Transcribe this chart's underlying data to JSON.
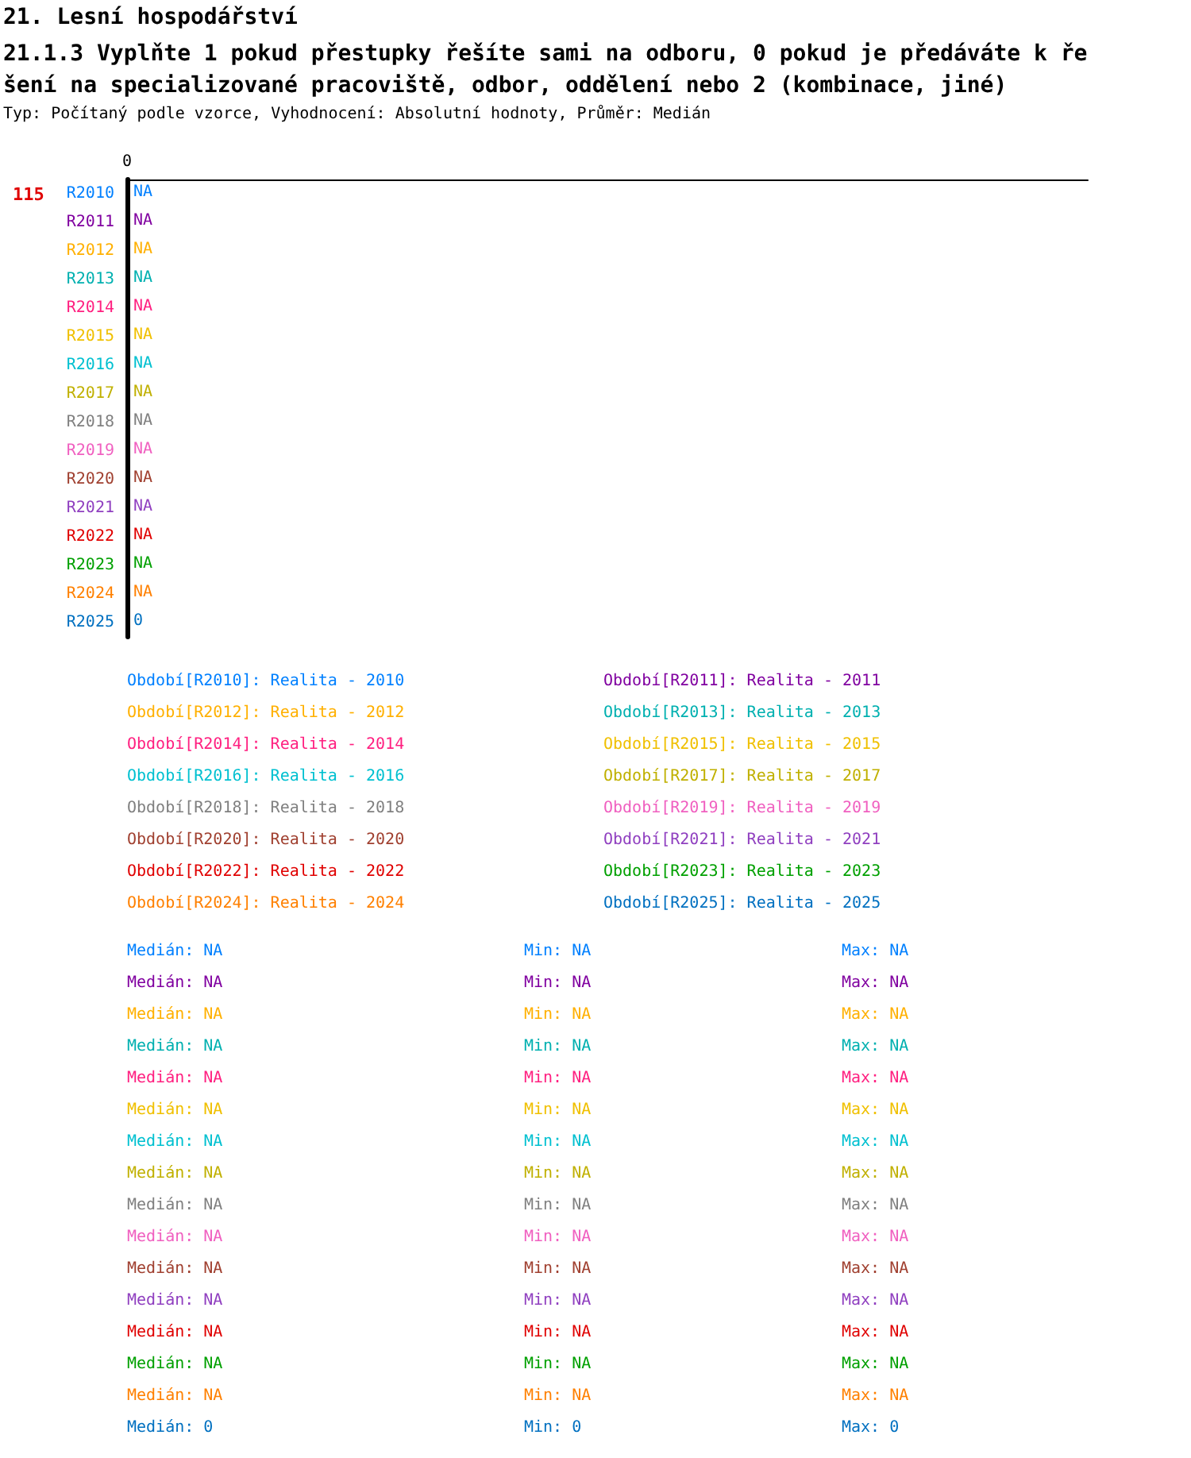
{
  "chart_data": {
    "type": "other",
    "title": "21. Lesní hospodářství",
    "subtitle": "21.1.3 Vyplňte 1 pokud přestupky řešíte sami na odboru, 0 pokud je předáváte k řešení na specializované pracoviště, odbor, oddělení nebo 2 (kombinace, jiné)",
    "categories": [
      "R2010",
      "R2011",
      "R2012",
      "R2013",
      "R2014",
      "R2015",
      "R2016",
      "R2017",
      "R2018",
      "R2019",
      "R2020",
      "R2021",
      "R2022",
      "R2023",
      "R2024",
      "R2025"
    ],
    "colors": [
      "#0080ff",
      "#8000a0",
      "#ffb000",
      "#00b0b0",
      "#ff2080",
      "#f0c000",
      "#00c0d0",
      "#c0b000",
      "#808080",
      "#f060c0",
      "#a04030",
      "#9040c0",
      "#e00000",
      "#00a000",
      "#ff8000",
      "#0070c0"
    ],
    "values": [
      null,
      null,
      null,
      null,
      null,
      null,
      null,
      null,
      null,
      null,
      null,
      null,
      null,
      null,
      null,
      0
    ],
    "value_labels": [
      "NA",
      "NA",
      "NA",
      "NA",
      "NA",
      "NA",
      "NA",
      "NA",
      "NA",
      "NA",
      "NA",
      "NA",
      "NA",
      "NA",
      "NA",
      "0"
    ],
    "annotations": [
      "Typ: Počítaný podle vzorce, Vyhodnocení: Absolutní hodnoty, Průměr: Medián",
      "115",
      "0",
      "Období[R2010]: Realita - 2010",
      "Období[R2011]: Realita - 2011",
      "Období[R2012]: Realita - 2012",
      "Období[R2013]: Realita - 2013",
      "Období[R2014]: Realita - 2014",
      "Období[R2015]: Realita - 2015",
      "Období[R2016]: Realita - 2016",
      "Období[R2017]: Realita - 2017",
      "Období[R2018]: Realita - 2018",
      "Období[R2019]: Realita - 2019",
      "Období[R2020]: Realita - 2020",
      "Období[R2021]: Realita - 2021",
      "Období[R2022]: Realita - 2022",
      "Období[R2023]: Realita - 2023",
      "Období[R2024]: Realita - 2024",
      "Období[R2025]: Realita - 2025",
      "Medián: NA",
      "Min: NA",
      "Max: NA",
      "Medián: NA",
      "Min: NA",
      "Max: NA",
      "Medián: NA",
      "Min: NA",
      "Max: NA",
      "Medián: NA",
      "Min: NA",
      "Max: NA",
      "Medián: NA",
      "Min: NA",
      "Max: NA",
      "Medián: NA",
      "Min: NA",
      "Max: NA",
      "Medián: NA",
      "Min: NA",
      "Max: NA",
      "Medián: NA",
      "Min: NA",
      "Max: NA",
      "Medián: NA",
      "Min: NA",
      "Max: NA",
      "Medián: NA",
      "Min: NA",
      "Max: NA",
      "Medián: NA",
      "Min: NA",
      "Max: NA",
      "Medián: NA",
      "Min: NA",
      "Max: NA",
      "Medián: NA",
      "Min: NA",
      "Max: NA",
      "Medián: NA",
      "Min: NA",
      "Max: NA",
      "Medián: NA",
      "Min: NA",
      "Max: NA",
      "Medián: 0",
      "Min: 0",
      "Max: 0"
    ]
  }
}
